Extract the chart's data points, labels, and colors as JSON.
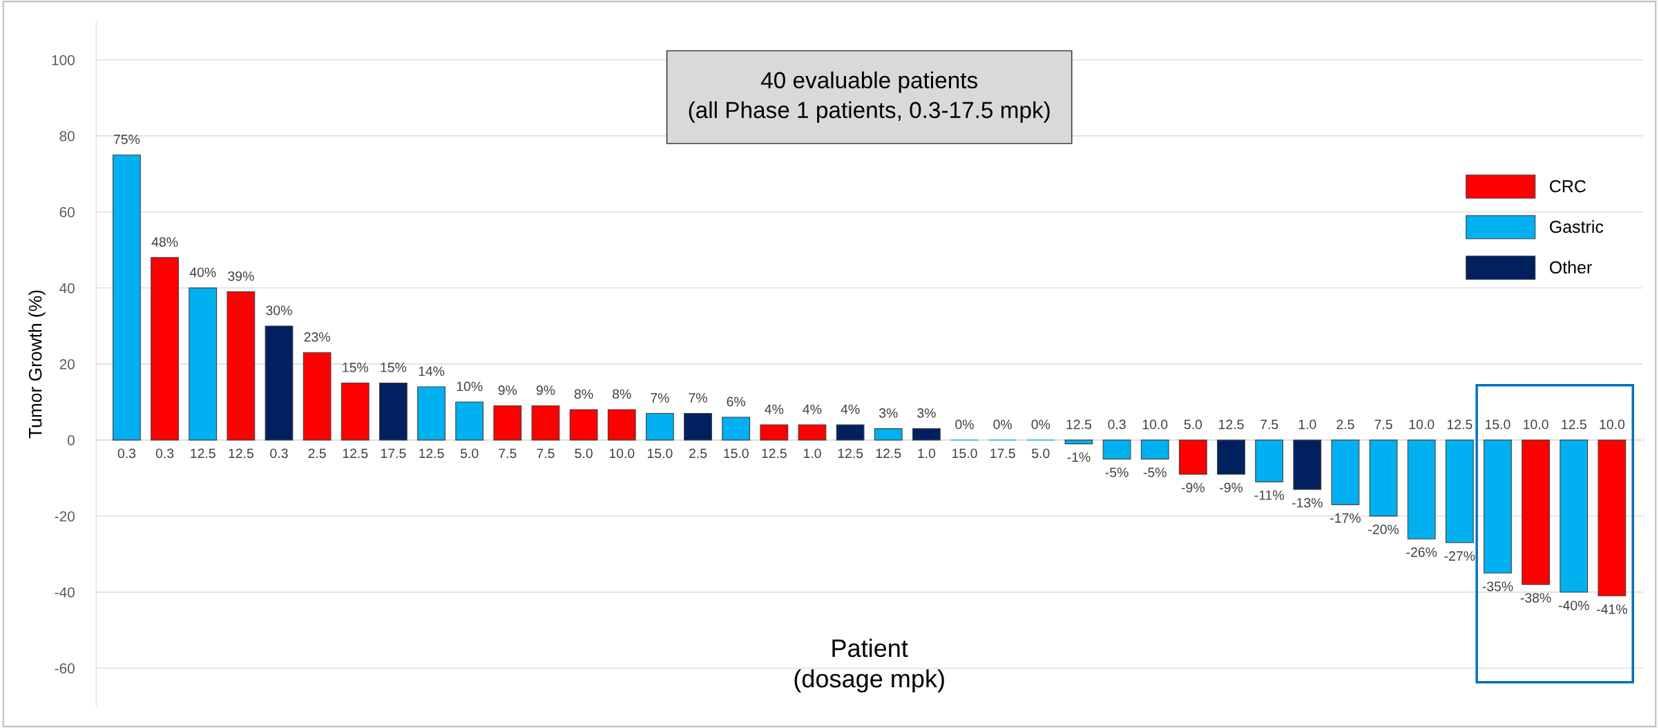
{
  "chart_data": {
    "type": "bar",
    "title": "40 evaluable patients\n(all Phase 1 patients, 0.3-17.5 mpk)",
    "xlabel": "Patient\n(dosage mpk)",
    "ylabel": "Tumor Growth (%)",
    "categories": [
      "0.3",
      "0.3",
      "12.5",
      "12.5",
      "0.3",
      "2.5",
      "12.5",
      "17.5",
      "12.5",
      "5.0",
      "7.5",
      "7.5",
      "5.0",
      "10.0",
      "15.0",
      "2.5",
      "15.0",
      "12.5",
      "1.0",
      "12.5",
      "12.5",
      "1.0",
      "15.0",
      "17.5",
      "5.0",
      "12.5",
      "0.3",
      "10.0",
      "5.0",
      "12.5",
      "7.5",
      "1.0",
      "2.5",
      "7.5",
      "10.0",
      "12.5",
      "15.0",
      "10.0",
      "12.5",
      "10.0"
    ],
    "series": [
      {
        "name": "CRC",
        "color": "#ff0000",
        "values": [
          null,
          48,
          null,
          39,
          null,
          23,
          15,
          null,
          null,
          null,
          9,
          9,
          8,
          8,
          null,
          null,
          null,
          4,
          4,
          null,
          null,
          null,
          null,
          null,
          null,
          null,
          null,
          null,
          -9,
          null,
          null,
          null,
          null,
          null,
          null,
          null,
          null,
          -38,
          null,
          -41
        ]
      },
      {
        "name": "Gastric",
        "color": "#00b0f0",
        "values": [
          75,
          null,
          40,
          null,
          null,
          null,
          null,
          null,
          14,
          10,
          null,
          null,
          null,
          null,
          7,
          null,
          6,
          null,
          null,
          null,
          3,
          null,
          0,
          0,
          0,
          -1,
          -5,
          -5,
          null,
          null,
          -11,
          null,
          -17,
          -20,
          -26,
          -27,
          -35,
          null,
          -40,
          null
        ]
      },
      {
        "name": "Other",
        "color": "#002060",
        "values": [
          null,
          null,
          null,
          null,
          30,
          null,
          null,
          15,
          null,
          null,
          null,
          null,
          null,
          null,
          null,
          7,
          null,
          null,
          null,
          4,
          null,
          3,
          null,
          null,
          null,
          null,
          null,
          null,
          null,
          -9,
          null,
          -13,
          null,
          null,
          null,
          null,
          null,
          null,
          null,
          null
        ]
      }
    ],
    "value_labels": [
      "75%",
      "48%",
      "40%",
      "39%",
      "30%",
      "23%",
      "15%",
      "15%",
      "14%",
      "10%",
      "9%",
      "9%",
      "8%",
      "8%",
      "7%",
      "7%",
      "6%",
      "4%",
      "4%",
      "4%",
      "3%",
      "3%",
      "0%",
      "0%",
      "0%",
      "-1%",
      "-5%",
      "-5%",
      "-9%",
      "-9%",
      "-11%",
      "-13%",
      "-17%",
      "-20%",
      "-26%",
      "-27%",
      "-35%",
      "-38%",
      "-40%",
      "-41%"
    ],
    "ylim": [
      -70,
      110
    ],
    "yticks": [
      -60,
      -40,
      -20,
      0,
      20,
      40,
      60,
      80,
      100
    ],
    "grid": "y",
    "legend": "right"
  }
}
